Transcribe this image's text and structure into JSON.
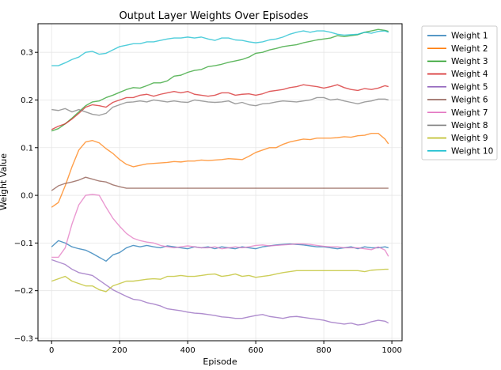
{
  "chart_data": {
    "type": "line",
    "title": "Output Layer Weights Over Episodes",
    "xlabel": "Episode",
    "ylabel": "Weight Value",
    "xlim": [
      -40,
      1030
    ],
    "ylim": [
      -0.305,
      0.36
    ],
    "xticks": [
      0,
      200,
      400,
      600,
      800,
      1000
    ],
    "yticks": [
      -0.3,
      -0.2,
      -0.1,
      0.0,
      0.1,
      0.2,
      0.3
    ],
    "xtick_labels": [
      "0",
      "200",
      "400",
      "600",
      "800",
      "1000"
    ],
    "ytick_labels": [
      "−0.3",
      "−0.2",
      "−0.1",
      "0.0",
      "0.1",
      "0.2",
      "0.3"
    ],
    "grid": true,
    "legend_position": "outside-right",
    "x": [
      0,
      20,
      40,
      60,
      80,
      100,
      120,
      140,
      160,
      180,
      200,
      220,
      240,
      260,
      280,
      300,
      320,
      340,
      360,
      380,
      400,
      420,
      440,
      460,
      480,
      500,
      520,
      540,
      560,
      580,
      600,
      620,
      640,
      660,
      680,
      700,
      720,
      740,
      760,
      780,
      800,
      820,
      840,
      860,
      880,
      900,
      920,
      940,
      960,
      980,
      990
    ],
    "series": [
      {
        "name": "Weight 1",
        "color": "#1f77b4",
        "values": [
          -0.108,
          -0.095,
          -0.1,
          -0.108,
          -0.112,
          -0.115,
          -0.122,
          -0.13,
          -0.138,
          -0.125,
          -0.12,
          -0.11,
          -0.105,
          -0.108,
          -0.105,
          -0.108,
          -0.11,
          -0.106,
          -0.108,
          -0.11,
          -0.112,
          -0.108,
          -0.11,
          -0.108,
          -0.112,
          -0.108,
          -0.11,
          -0.112,
          -0.108,
          -0.11,
          -0.112,
          -0.108,
          -0.106,
          -0.104,
          -0.103,
          -0.102,
          -0.103,
          -0.104,
          -0.106,
          -0.108,
          -0.108,
          -0.11,
          -0.112,
          -0.11,
          -0.108,
          -0.112,
          -0.108,
          -0.11,
          -0.11,
          -0.108,
          -0.11
        ]
      },
      {
        "name": "Weight 2",
        "color": "#ff7f0e",
        "values": [
          -0.025,
          -0.015,
          0.02,
          0.06,
          0.095,
          0.112,
          0.115,
          0.11,
          0.098,
          0.088,
          0.075,
          0.065,
          0.06,
          0.063,
          0.066,
          0.067,
          0.068,
          0.069,
          0.071,
          0.07,
          0.072,
          0.072,
          0.074,
          0.073,
          0.074,
          0.075,
          0.077,
          0.076,
          0.075,
          0.082,
          0.09,
          0.095,
          0.1,
          0.1,
          0.107,
          0.112,
          0.115,
          0.118,
          0.117,
          0.12,
          0.12,
          0.12,
          0.121,
          0.123,
          0.122,
          0.125,
          0.126,
          0.13,
          0.13,
          0.118,
          0.108
        ]
      },
      {
        "name": "Weight 3",
        "color": "#2ca02c",
        "values": [
          0.135,
          0.14,
          0.15,
          0.162,
          0.175,
          0.188,
          0.196,
          0.198,
          0.205,
          0.21,
          0.216,
          0.222,
          0.226,
          0.225,
          0.23,
          0.236,
          0.236,
          0.24,
          0.25,
          0.252,
          0.258,
          0.262,
          0.264,
          0.27,
          0.272,
          0.275,
          0.279,
          0.282,
          0.285,
          0.29,
          0.298,
          0.3,
          0.305,
          0.308,
          0.312,
          0.314,
          0.316,
          0.32,
          0.323,
          0.326,
          0.328,
          0.33,
          0.335,
          0.333,
          0.335,
          0.337,
          0.342,
          0.345,
          0.348,
          0.346,
          0.344
        ]
      },
      {
        "name": "Weight 4",
        "color": "#d62728",
        "values": [
          0.138,
          0.145,
          0.15,
          0.16,
          0.172,
          0.185,
          0.19,
          0.188,
          0.185,
          0.195,
          0.2,
          0.205,
          0.205,
          0.21,
          0.212,
          0.208,
          0.212,
          0.215,
          0.218,
          0.215,
          0.218,
          0.212,
          0.21,
          0.208,
          0.21,
          0.215,
          0.215,
          0.21,
          0.212,
          0.213,
          0.21,
          0.213,
          0.218,
          0.22,
          0.222,
          0.226,
          0.228,
          0.232,
          0.23,
          0.228,
          0.225,
          0.228,
          0.232,
          0.226,
          0.222,
          0.22,
          0.224,
          0.222,
          0.225,
          0.23,
          0.228
        ]
      },
      {
        "name": "Weight 5",
        "color": "#9467bd",
        "values": [
          -0.135,
          -0.14,
          -0.145,
          -0.155,
          -0.162,
          -0.165,
          -0.168,
          -0.178,
          -0.188,
          -0.198,
          -0.205,
          -0.212,
          -0.218,
          -0.22,
          -0.225,
          -0.228,
          -0.232,
          -0.238,
          -0.24,
          -0.242,
          -0.245,
          -0.247,
          -0.248,
          -0.25,
          -0.252,
          -0.255,
          -0.256,
          -0.258,
          -0.258,
          -0.255,
          -0.252,
          -0.25,
          -0.254,
          -0.256,
          -0.258,
          -0.255,
          -0.254,
          -0.256,
          -0.258,
          -0.26,
          -0.262,
          -0.266,
          -0.268,
          -0.27,
          -0.268,
          -0.272,
          -0.27,
          -0.265,
          -0.262,
          -0.264,
          -0.268
        ]
      },
      {
        "name": "Weight 6",
        "color": "#8c564b",
        "values": [
          0.01,
          0.02,
          0.025,
          0.028,
          0.032,
          0.038,
          0.034,
          0.03,
          0.028,
          0.022,
          0.018,
          0.015,
          0.015,
          0.015,
          0.015,
          0.015,
          0.015,
          0.015,
          0.015,
          0.015,
          0.015,
          0.015,
          0.015,
          0.015,
          0.015,
          0.015,
          0.015,
          0.015,
          0.015,
          0.015,
          0.015,
          0.015,
          0.015,
          0.015,
          0.015,
          0.015,
          0.015,
          0.015,
          0.015,
          0.015,
          0.015,
          0.015,
          0.015,
          0.015,
          0.015,
          0.015,
          0.015,
          0.015,
          0.015,
          0.015,
          0.015
        ]
      },
      {
        "name": "Weight 7",
        "color": "#e377c2",
        "values": [
          -0.13,
          -0.13,
          -0.11,
          -0.06,
          -0.02,
          0.0,
          0.002,
          0.0,
          -0.025,
          -0.048,
          -0.065,
          -0.08,
          -0.09,
          -0.095,
          -0.098,
          -0.1,
          -0.105,
          -0.108,
          -0.11,
          -0.108,
          -0.106,
          -0.108,
          -0.11,
          -0.11,
          -0.108,
          -0.112,
          -0.11,
          -0.108,
          -0.11,
          -0.108,
          -0.105,
          -0.104,
          -0.106,
          -0.105,
          -0.104,
          -0.103,
          -0.102,
          -0.102,
          -0.103,
          -0.105,
          -0.107,
          -0.108,
          -0.108,
          -0.11,
          -0.11,
          -0.11,
          -0.112,
          -0.114,
          -0.108,
          -0.115,
          -0.128
        ]
      },
      {
        "name": "Weight 8",
        "color": "#7f7f7f",
        "values": [
          0.18,
          0.178,
          0.182,
          0.175,
          0.18,
          0.175,
          0.17,
          0.168,
          0.172,
          0.185,
          0.19,
          0.195,
          0.196,
          0.198,
          0.196,
          0.2,
          0.198,
          0.196,
          0.198,
          0.196,
          0.195,
          0.2,
          0.198,
          0.196,
          0.195,
          0.196,
          0.198,
          0.192,
          0.195,
          0.19,
          0.188,
          0.192,
          0.193,
          0.196,
          0.198,
          0.197,
          0.196,
          0.198,
          0.2,
          0.205,
          0.205,
          0.2,
          0.202,
          0.198,
          0.195,
          0.192,
          0.196,
          0.198,
          0.202,
          0.202,
          0.2
        ]
      },
      {
        "name": "Weight 9",
        "color": "#bcbd22",
        "values": [
          -0.18,
          -0.175,
          -0.17,
          -0.18,
          -0.185,
          -0.19,
          -0.19,
          -0.198,
          -0.202,
          -0.19,
          -0.185,
          -0.18,
          -0.18,
          -0.178,
          -0.176,
          -0.175,
          -0.176,
          -0.17,
          -0.17,
          -0.168,
          -0.17,
          -0.17,
          -0.168,
          -0.166,
          -0.165,
          -0.17,
          -0.168,
          -0.165,
          -0.17,
          -0.168,
          -0.172,
          -0.17,
          -0.168,
          -0.165,
          -0.162,
          -0.16,
          -0.158,
          -0.158,
          -0.158,
          -0.158,
          -0.158,
          -0.158,
          -0.158,
          -0.158,
          -0.158,
          -0.158,
          -0.16,
          -0.157,
          -0.156,
          -0.155,
          -0.155
        ]
      },
      {
        "name": "Weight 10",
        "color": "#17becf",
        "values": [
          0.272,
          0.272,
          0.278,
          0.285,
          0.29,
          0.3,
          0.302,
          0.296,
          0.298,
          0.305,
          0.312,
          0.315,
          0.318,
          0.318,
          0.322,
          0.322,
          0.325,
          0.328,
          0.33,
          0.33,
          0.332,
          0.33,
          0.332,
          0.328,
          0.325,
          0.33,
          0.33,
          0.326,
          0.325,
          0.322,
          0.32,
          0.322,
          0.326,
          0.328,
          0.332,
          0.338,
          0.342,
          0.345,
          0.342,
          0.345,
          0.345,
          0.342,
          0.338,
          0.336,
          0.337,
          0.338,
          0.342,
          0.34,
          0.344,
          0.345,
          0.342
        ]
      }
    ]
  }
}
